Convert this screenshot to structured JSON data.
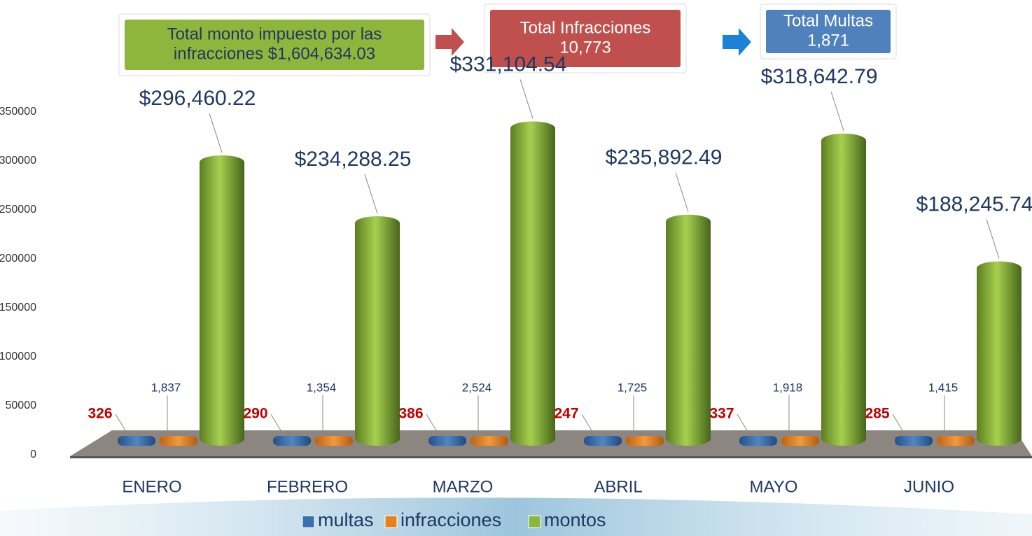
{
  "chart_data": {
    "type": "bar3d",
    "annotations": [
      {
        "text": [
          "Total monto impuesto por las",
          "infracciones $1,604,634.03"
        ],
        "color": "#8fb63c"
      },
      {
        "text": [
          "Total Infracciones",
          "10,773"
        ],
        "color": "#c0504d"
      },
      {
        "text": [
          "Total Multas",
          "1,871"
        ],
        "color": "#4f81bd"
      }
    ],
    "categories": [
      "ENERO",
      "FEBRERO",
      "MARZO",
      "ABRIL",
      "MAYO",
      "JUNIO"
    ],
    "series": [
      {
        "name": "multas",
        "color": "#3a6fb0",
        "values": [
          326,
          290,
          386,
          247,
          337,
          285
        ]
      },
      {
        "name": "infracciones",
        "color": "#e8821e",
        "values": [
          1837,
          1354,
          2524,
          1725,
          1918,
          1415
        ],
        "value_labels": [
          "1,837",
          "1,354",
          "2,524",
          "1,725",
          "1,918",
          "1,415"
        ]
      },
      {
        "name": "montos",
        "color": "#8cb83a",
        "values": [
          296460.22,
          234288.25,
          331104.54,
          235892.49,
          318642.79,
          188245.74
        ],
        "value_labels": [
          "$296,460.22",
          "$234,288.25",
          "$331,104.54",
          "$235,892.49",
          "$318,642.79",
          "$188,245.74"
        ]
      }
    ],
    "ylim": [
      0,
      350000
    ],
    "yticks": [
      0,
      50000,
      100000,
      150000,
      200000,
      250000,
      300000,
      350000
    ]
  }
}
